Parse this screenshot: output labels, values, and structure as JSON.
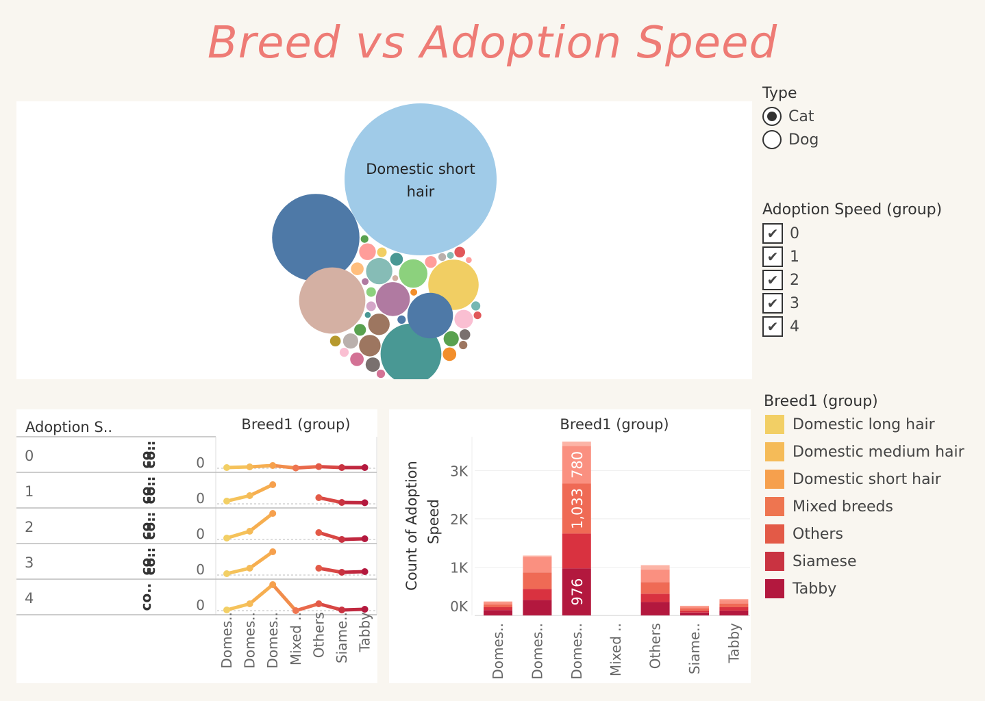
{
  "title": "Breed vs Adoption Speed",
  "type_filter": {
    "title": "Type",
    "options": [
      {
        "label": "Cat",
        "selected": true
      },
      {
        "label": "Dog",
        "selected": false
      }
    ]
  },
  "speed_filter": {
    "title": "Adoption Speed (group)",
    "options": [
      {
        "label": "0",
        "checked": true
      },
      {
        "label": "1",
        "checked": true
      },
      {
        "label": "2",
        "checked": true
      },
      {
        "label": "3",
        "checked": true
      },
      {
        "label": "4",
        "checked": true
      }
    ]
  },
  "breed_legend": {
    "title": "Breed1 (group)",
    "items": [
      {
        "label": "Domestic long hair",
        "color": "#f2cf65"
      },
      {
        "label": "Domestic medium hair",
        "color": "#f5bb58"
      },
      {
        "label": "Domestic short hair",
        "color": "#f6a04d"
      },
      {
        "label": "Mixed breeds",
        "color": "#ee7550"
      },
      {
        "label": "Others",
        "color": "#e35a47"
      },
      {
        "label": "Siamese",
        "color": "#c93341"
      },
      {
        "label": "Tabby",
        "color": "#b3183e"
      }
    ]
  },
  "chart_data": [
    {
      "type": "bubble",
      "labels": [
        "Domestic short hair"
      ],
      "bubbles": [
        {
          "label": "Domestic short hair",
          "value": 100,
          "color": "#a0cbe8"
        },
        {
          "label": "",
          "value": 33,
          "color": "#4e79a7"
        },
        {
          "label": "",
          "value": 19,
          "color": "#d4b0a3"
        },
        {
          "label": "",
          "value": 16,
          "color": "#499894"
        },
        {
          "label": "",
          "value": 11,
          "color": "#f1ce63"
        },
        {
          "label": "",
          "value": 9,
          "color": "#4e79a7"
        },
        {
          "label": "",
          "value": 5,
          "color": "#b07aa1"
        },
        {
          "label": "",
          "value": 3.5,
          "color": "#8cd17d"
        },
        {
          "label": "",
          "value": 3,
          "color": "#86bcb6"
        },
        {
          "label": "",
          "value": 2,
          "color": "#9d7660"
        },
        {
          "label": "",
          "value": 2,
          "color": "#9d7660"
        },
        {
          "label": "",
          "value": 1.5,
          "color": "#fabfd2"
        },
        {
          "label": "",
          "value": 1.2,
          "color": "#ff9d9a"
        },
        {
          "label": "",
          "value": 1,
          "color": "#59a14f"
        },
        {
          "label": "",
          "value": 1,
          "color": "#bab0ac"
        },
        {
          "label": "",
          "value": 0.9,
          "color": "#79706e"
        },
        {
          "label": "",
          "value": 0.8,
          "color": "#d37295"
        },
        {
          "label": "",
          "value": 0.8,
          "color": "#f28e2b"
        },
        {
          "label": "",
          "value": 0.7,
          "color": "#499894"
        },
        {
          "label": "",
          "value": 0.7,
          "color": "#ffbe7d"
        },
        {
          "label": "",
          "value": 0.6,
          "color": "#ff9d9a"
        },
        {
          "label": "",
          "value": 0.6,
          "color": "#59a14f"
        },
        {
          "label": "",
          "value": 0.5,
          "color": "#79706e"
        },
        {
          "label": "",
          "value": 0.5,
          "color": "#e15759"
        },
        {
          "label": "",
          "value": 0.5,
          "color": "#b6992d"
        },
        {
          "label": "",
          "value": 0.4,
          "color": "#d4a6c8"
        },
        {
          "label": "",
          "value": 0.4,
          "color": "#8cd17d"
        },
        {
          "label": "",
          "value": 0.4,
          "color": "#f1ce63"
        },
        {
          "label": "",
          "value": 0.35,
          "color": "#76b7b2"
        },
        {
          "label": "",
          "value": 0.35,
          "color": "#fabfd2"
        },
        {
          "label": "",
          "value": 0.3,
          "color": "#4e79a7"
        },
        {
          "label": "",
          "value": 0.3,
          "color": "#d37295"
        },
        {
          "label": "",
          "value": 0.3,
          "color": "#9d7660"
        },
        {
          "label": "",
          "value": 0.25,
          "color": "#bab0ac"
        },
        {
          "label": "",
          "value": 0.25,
          "color": "#59a14f"
        },
        {
          "label": "",
          "value": 0.25,
          "color": "#e15759"
        },
        {
          "label": "",
          "value": 0.2,
          "color": "#f28e2b"
        },
        {
          "label": "",
          "value": 0.2,
          "color": "#b07aa1"
        },
        {
          "label": "",
          "value": 0.2,
          "color": "#86bcb6"
        },
        {
          "label": "",
          "value": 0.15,
          "color": "#d4b0a3"
        },
        {
          "label": "",
          "value": 0.15,
          "color": "#499894"
        },
        {
          "label": "",
          "value": 0.15,
          "color": "#ff9d9a"
        }
      ]
    },
    {
      "type": "line",
      "row_header": "Adoption S..",
      "col_header": "Breed1 (group)",
      "row_labels": [
        "0",
        "1",
        "2",
        "3",
        "4"
      ],
      "measure_label": "co..",
      "axis_tick": "0",
      "categories": [
        "Domes..",
        "Domes..",
        "Domes..",
        "Mixed ..",
        "Others",
        "Siame..",
        "Tabby"
      ],
      "category_colors": [
        "#f2cf65",
        "#f5bb58",
        "#f6a04d",
        "#ee7550",
        "#e35a47",
        "#c93341",
        "#b3183e"
      ],
      "segment_colors": [
        "#f5c25a",
        "#f6ae50",
        "#f18d4c",
        "#e9694b",
        "#d84744",
        "#c0283f"
      ],
      "rows": [
        [
          0.05,
          0.1,
          0.2,
          0.02,
          0.12,
          0.05,
          0.05
        ],
        [
          0.2,
          0.6,
          1.4,
          null,
          0.45,
          0.1,
          0.08
        ],
        [
          0.1,
          0.6,
          1.9,
          null,
          0.5,
          0.0,
          0.05
        ],
        [
          0.1,
          0.5,
          1.7,
          null,
          0.5,
          0.2,
          0.25
        ],
        [
          0.05,
          0.5,
          1.9,
          0.0,
          0.5,
          0.05,
          0.1
        ]
      ]
    },
    {
      "type": "bar",
      "stacked": true,
      "title": "Breed1 (group)",
      "ylabel": "Count of Adoption Speed",
      "ylim": [
        0,
        3700
      ],
      "yticks": [
        0,
        1000,
        2000,
        3000
      ],
      "ytick_labels": [
        "0K",
        "1K",
        "2K",
        "3K"
      ],
      "categories": [
        "Domes..",
        "Domes..",
        "Domes..",
        "Mixed ..",
        "Others",
        "Siame..",
        "Tabby"
      ],
      "series": [
        {
          "name": "4",
          "color": "#b3183e",
          "values": [
            110,
            320,
            976,
            0,
            280,
            60,
            100
          ]
        },
        {
          "name": "3",
          "color": "#d93240",
          "values": [
            60,
            230,
            720,
            0,
            170,
            40,
            70
          ]
        },
        {
          "name": "2",
          "color": "#ef6a55",
          "values": [
            60,
            340,
            1033,
            0,
            240,
            50,
            80
          ]
        },
        {
          "name": "1",
          "color": "#fa9080",
          "values": [
            50,
            320,
            780,
            0,
            260,
            40,
            70
          ]
        },
        {
          "name": "0",
          "color": "#fcb4a6",
          "values": [
            10,
            30,
            90,
            0,
            90,
            10,
            20
          ]
        }
      ],
      "data_labels": [
        {
          "category_index": 2,
          "series": "4",
          "text": "976"
        },
        {
          "category_index": 2,
          "series": "2",
          "text": "1,033"
        },
        {
          "category_index": 2,
          "series": "1",
          "text": "780"
        }
      ]
    }
  ]
}
